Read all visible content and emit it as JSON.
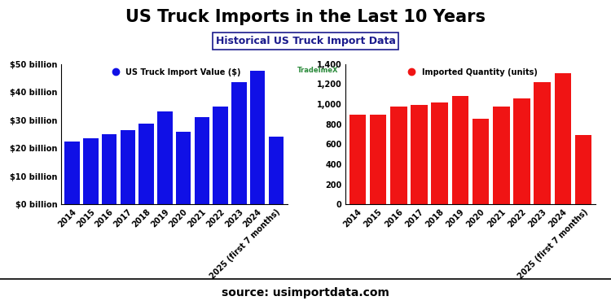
{
  "title": "US Truck Imports in the Last 10 Years",
  "subtitle": "Historical US Truck Import Data",
  "logo": "TradeImeX",
  "source": "source: usimportdata.com",
  "chart_data": [
    {
      "type": "bar",
      "categories": [
        "2014",
        "2015",
        "2016",
        "2017",
        "2018",
        "2019",
        "2020",
        "2021",
        "2022",
        "2023",
        "2024",
        "2025 (first 7 months)"
      ],
      "series": [
        {
          "name": "US Truck Import Value ($)",
          "color": "#1010e6",
          "values": [
            22.5,
            23.5,
            25,
            26.5,
            28.8,
            33,
            26,
            31,
            35,
            43.5,
            47.5,
            24
          ]
        }
      ],
      "ylim": [
        0,
        50
      ],
      "yticks": [
        {
          "value": 0,
          "label": "$0 billion"
        },
        {
          "value": 10,
          "label": "$10 billion"
        },
        {
          "value": 20,
          "label": "$20 billion"
        },
        {
          "value": 30,
          "label": "$30 billion"
        },
        {
          "value": 40,
          "label": "$40 billion"
        },
        {
          "value": 50,
          "label": "$50 billion"
        }
      ],
      "grid": false,
      "legend": "upper center"
    },
    {
      "type": "bar",
      "categories": [
        "2014",
        "2015",
        "2016",
        "2017",
        "2018",
        "2019",
        "2020",
        "2021",
        "2022",
        "2023",
        "2024",
        "2025 (first 7 months)"
      ],
      "series": [
        {
          "name": "Imported Quantity (units)",
          "color": "#f01414",
          "values": [
            895,
            895,
            975,
            990,
            1020,
            1080,
            855,
            975,
            1055,
            1220,
            1310,
            690
          ]
        }
      ],
      "ylim": [
        0,
        1400
      ],
      "yticks": [
        0,
        200,
        400,
        600,
        800,
        {
          "value": 1000,
          "label": "1,000"
        },
        {
          "value": 1200,
          "label": "1,200"
        },
        {
          "value": 1400,
          "label": "1,400"
        }
      ],
      "grid": false,
      "legend": "upper center"
    }
  ]
}
